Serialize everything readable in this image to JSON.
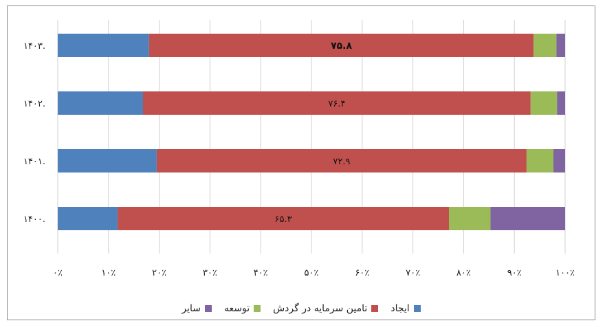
{
  "chart_data": {
    "type": "bar",
    "orientation": "horizontal",
    "stacked": "percent",
    "categories": [
      "۱۴۰۳.",
      "۱۴۰۲.",
      "۱۴۰۱.",
      "۱۴۰۰."
    ],
    "series": [
      {
        "name": "ایجاد",
        "color": "#4f81bd",
        "values": [
          18.0,
          16.8,
          19.5,
          11.8
        ]
      },
      {
        "name": "تامین سرمایه در گردش",
        "color": "#c0504d",
        "values": [
          75.8,
          76.4,
          72.9,
          65.3
        ]
      },
      {
        "name": "توسعه",
        "color": "#9bbb59",
        "values": [
          4.5,
          5.2,
          5.3,
          8.2
        ]
      },
      {
        "name": "سایر",
        "color": "#8064a2",
        "values": [
          1.7,
          1.6,
          2.3,
          14.7
        ]
      }
    ],
    "data_labels": [
      "۷۵.۸",
      "۷۶.۴",
      "۷۲.۹",
      "۶۵.۳"
    ],
    "data_label_series": "تامین سرمایه در گردش",
    "xticks": [
      "۰٪",
      "۱۰٪",
      "۲۰٪",
      "۳۰٪",
      "۴۰٪",
      "۵۰٪",
      "۶۰٪",
      "۷۰٪",
      "۸۰٪",
      "۹۰٪",
      "۱۰۰٪"
    ],
    "xlim": [
      0,
      100
    ],
    "grid": true,
    "legend_position": "bottom"
  }
}
